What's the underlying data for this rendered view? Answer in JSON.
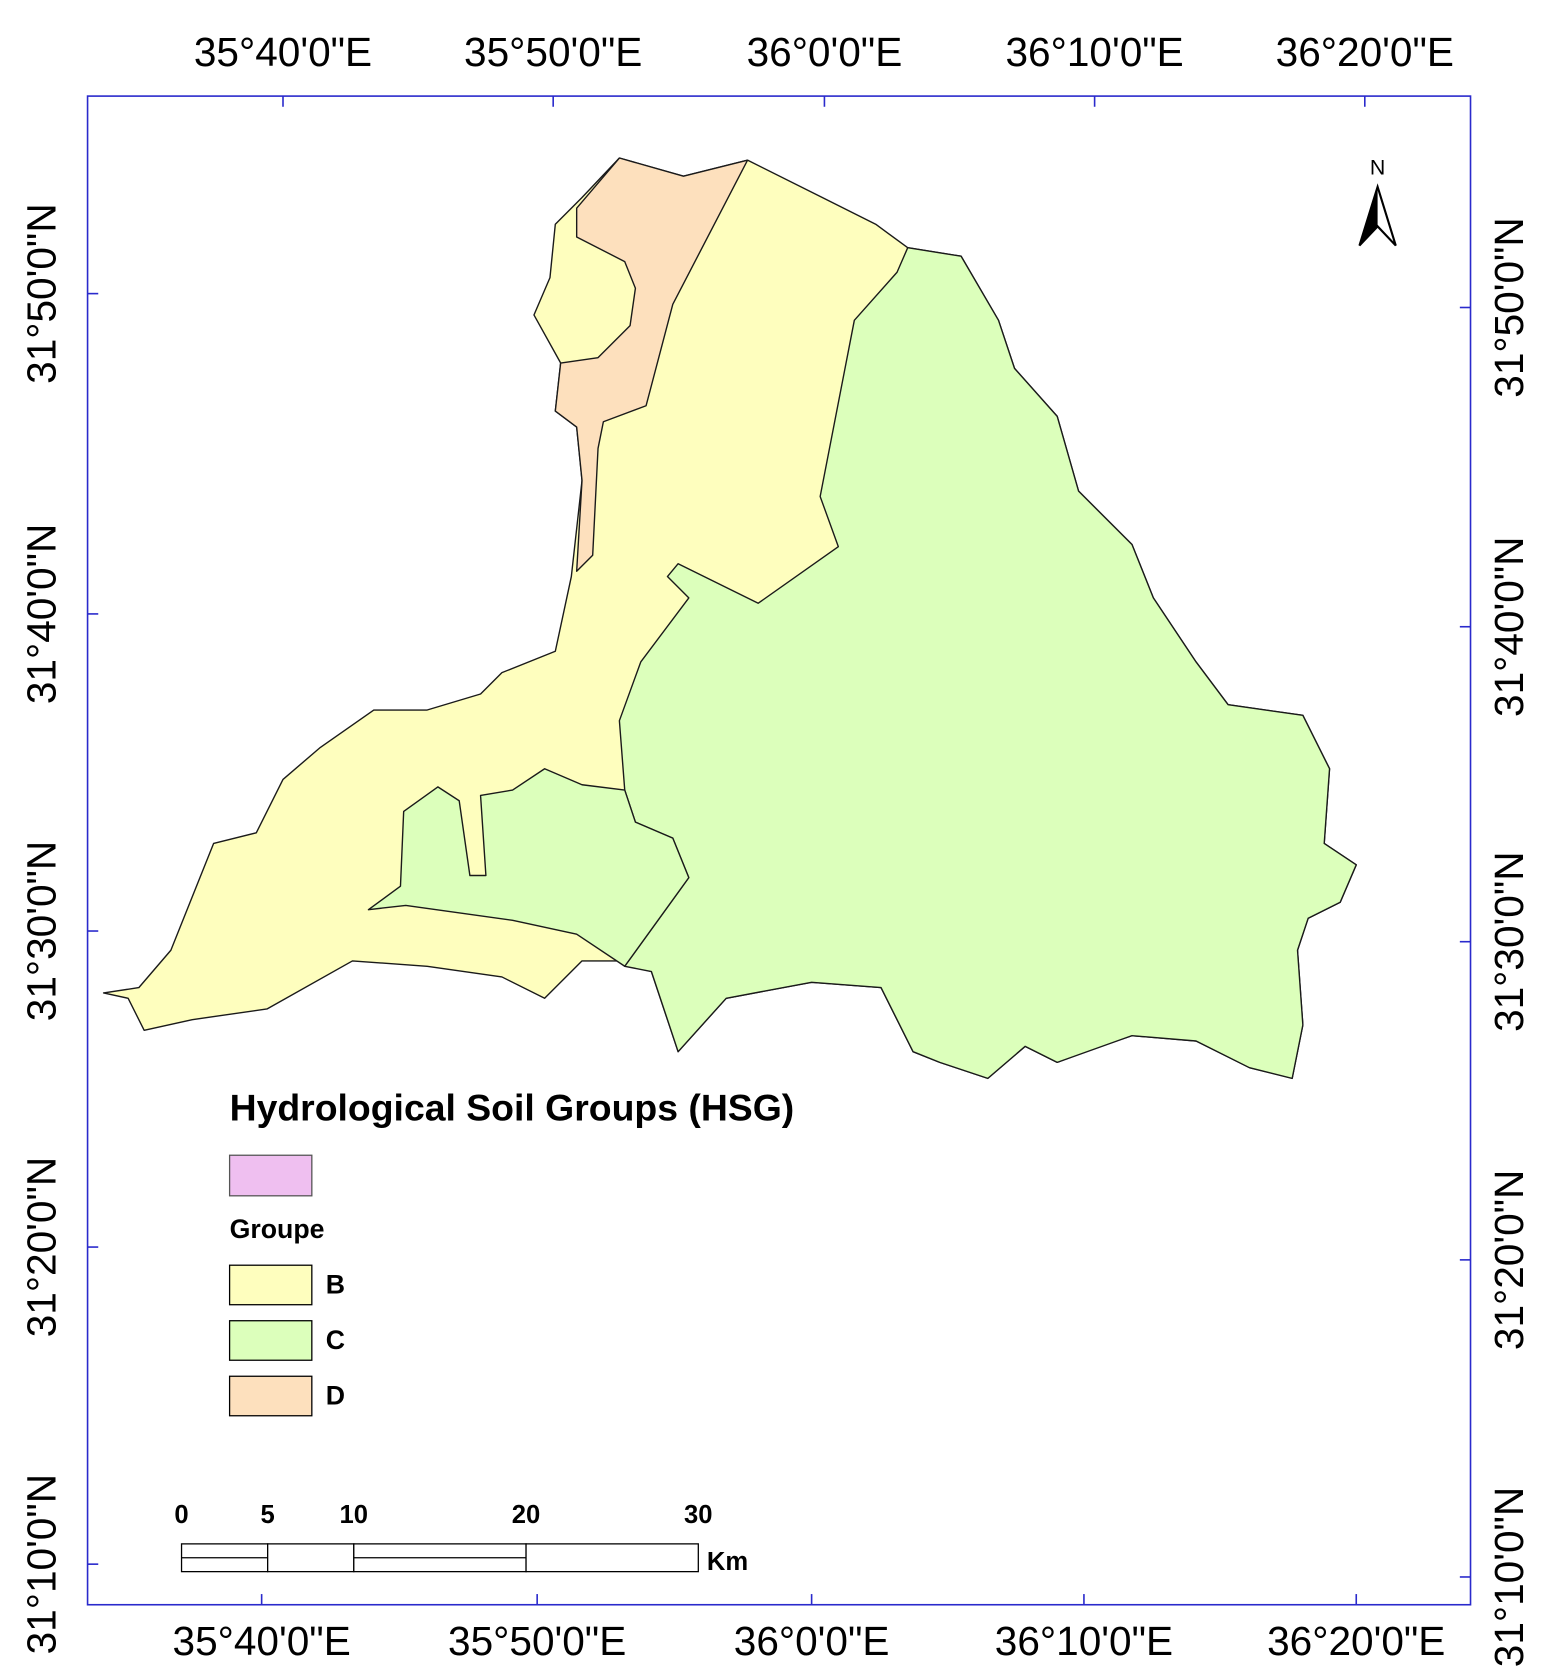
{
  "map": {
    "title": "Hydrological Soil Groups (HSG)",
    "legend": {
      "layer_color": "#efbff0",
      "field": "Groupe",
      "items": [
        {
          "label": "B",
          "color": "#fefebe"
        },
        {
          "label": "C",
          "color": "#dcffbb"
        },
        {
          "label": "D",
          "color": "#fde0bd"
        }
      ]
    },
    "graticule": {
      "top": [
        "35°40'0\"E",
        "35°50'0\"E",
        "36°0'0\"E",
        "36°10'0\"E",
        "36°20'0\"E"
      ],
      "bottom": [
        "35°40'0\"E",
        "35°50'0\"E",
        "36°0'0\"E",
        "36°10'0\"E",
        "36°20'0\"E"
      ],
      "left": [
        "31°50'0\"N",
        "31°40'0\"N",
        "31°30'0\"N",
        "31°20'0\"N",
        "31°10'0\"N"
      ],
      "right": [
        "31°50'0\"N",
        "31°40'0\"N",
        "31°30'0\"N",
        "31°20'0\"N",
        "31°10'0\"N"
      ]
    },
    "scale_bar": {
      "ticks": [
        0,
        5,
        10,
        20,
        30
      ],
      "unit": "Km"
    },
    "north": "N"
  }
}
